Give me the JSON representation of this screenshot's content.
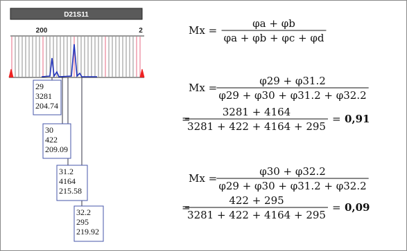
{
  "locus": "D21S11",
  "axis_labels": [
    "200",
    "2"
  ],
  "peaks": [
    {
      "allele": "29",
      "height": "3281",
      "size": "204.74"
    },
    {
      "allele": "30",
      "height": "422",
      "size": "209.09"
    },
    {
      "allele": "31.2",
      "height": "4164",
      "size": "215.58"
    },
    {
      "allele": "32.2",
      "height": "295",
      "size": "219.92"
    }
  ],
  "formulas": [
    {
      "lhs": "Mx =",
      "numerator": "φa + φb",
      "denominator": "φa + φb + φc + φd"
    },
    {
      "lhs": "Mx =",
      "numerator": "φ29 + φ31.2",
      "denominator": "φ29 + φ30 + φ31.2 + φ32.2",
      "equals": "=",
      "value_numerator": "3281 + 4164",
      "value_denominator": "3281 + 422 + 4164 + 295",
      "result_equals": "=",
      "result": "0,91"
    },
    {
      "lhs": "Mx =",
      "numerator": "φ30 + φ32.2",
      "denominator": "φ29 + φ30 + φ31.2 + φ32.2",
      "equals": "=",
      "value_numerator": "422 + 295",
      "value_denominator": "3281 + 422 + 4164 + 295",
      "result_equals": "=",
      "result": "0,09"
    }
  ]
}
